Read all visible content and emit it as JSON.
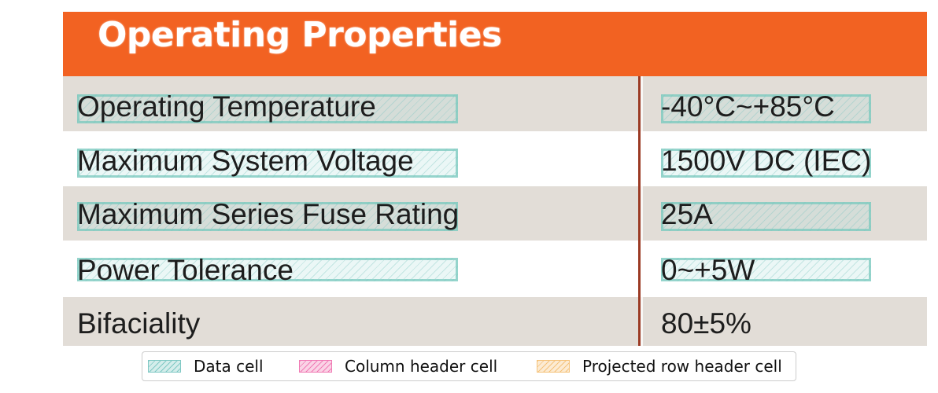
{
  "header": {
    "title": "Operating Properties",
    "color": "#f26222"
  },
  "table": {
    "rows": [
      {
        "label": "Operating Temperature",
        "value": "-40°C~+85°C",
        "label_highlighted": true,
        "value_highlighted": true
      },
      {
        "label": "Maximum System Voltage",
        "value": "1500V DC (IEC)",
        "label_highlighted": true,
        "value_highlighted": true
      },
      {
        "label": "Maximum Series Fuse Rating",
        "value": "25A",
        "label_highlighted": true,
        "value_highlighted": true
      },
      {
        "label": "Power Tolerance",
        "value": "0~+5W",
        "label_highlighted": true,
        "value_highlighted": true
      },
      {
        "label": "Bifaciality",
        "value": "80±5%",
        "label_highlighted": false,
        "value_highlighted": false
      }
    ],
    "shaded_row_color": "#e2ddd7",
    "divider_color": "#9b3a24"
  },
  "legend": {
    "items": [
      {
        "label": "Data cell",
        "color": "#7fc8c4"
      },
      {
        "label": "Column header cell",
        "color": "#f07ab4"
      },
      {
        "label": "Projected row header cell",
        "color": "#f5c27a"
      }
    ]
  }
}
